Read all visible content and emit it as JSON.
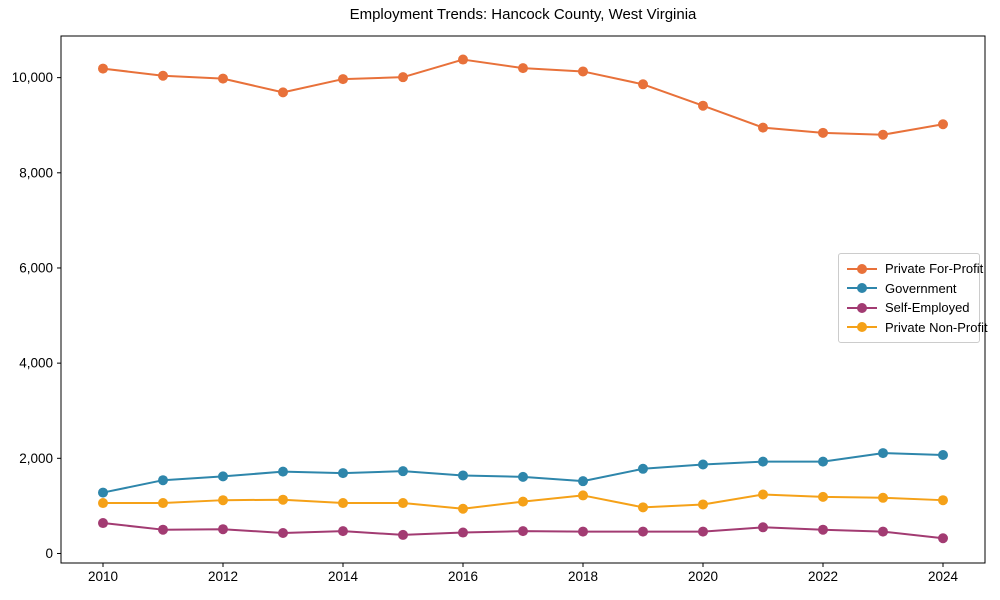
{
  "chart_data": {
    "type": "line",
    "title": "Employment Trends: Hancock County, West Virginia",
    "xlabel": "",
    "ylabel": "",
    "x": [
      2010,
      2011,
      2012,
      2013,
      2014,
      2015,
      2016,
      2017,
      2018,
      2019,
      2020,
      2021,
      2022,
      2023,
      2024
    ],
    "series": [
      {
        "name": "Private For-Profit",
        "color": "#E8713A",
        "values": [
          10190,
          10040,
          9980,
          9690,
          9970,
          10010,
          10380,
          10200,
          10130,
          9860,
          9410,
          8950,
          8840,
          8800,
          9020
        ]
      },
      {
        "name": "Government",
        "color": "#2E86AB",
        "values": [
          1280,
          1540,
          1620,
          1720,
          1690,
          1730,
          1640,
          1610,
          1520,
          1780,
          1870,
          1930,
          1930,
          2110,
          2070
        ]
      },
      {
        "name": "Self-Employed",
        "color": "#A23B72",
        "values": [
          640,
          500,
          510,
          430,
          470,
          390,
          440,
          470,
          460,
          460,
          460,
          550,
          500,
          460,
          320
        ]
      },
      {
        "name": "Private Non-Profit",
        "color": "#F5A118",
        "values": [
          1060,
          1060,
          1120,
          1130,
          1060,
          1060,
          940,
          1090,
          1220,
          970,
          1030,
          1240,
          1190,
          1170,
          1120
        ]
      }
    ],
    "xticks": [
      2010,
      2012,
      2014,
      2016,
      2018,
      2020,
      2022,
      2024
    ],
    "xtick_labels": [
      "2010",
      "2012",
      "2014",
      "2016",
      "2018",
      "2020",
      "2022",
      "2024"
    ],
    "yticks": [
      0,
      2000,
      4000,
      6000,
      8000,
      10000
    ],
    "ytick_labels": [
      "0",
      "2,000",
      "4,000",
      "6,000",
      "8,000",
      "10,000"
    ],
    "xlim": [
      2009.3,
      2024.7
    ],
    "ylim": [
      -200,
      10875
    ],
    "grid": false,
    "legend_position": "center right",
    "axis_color": "#000000",
    "marker": "circle",
    "marker_radius": 5,
    "line_width": 2
  }
}
